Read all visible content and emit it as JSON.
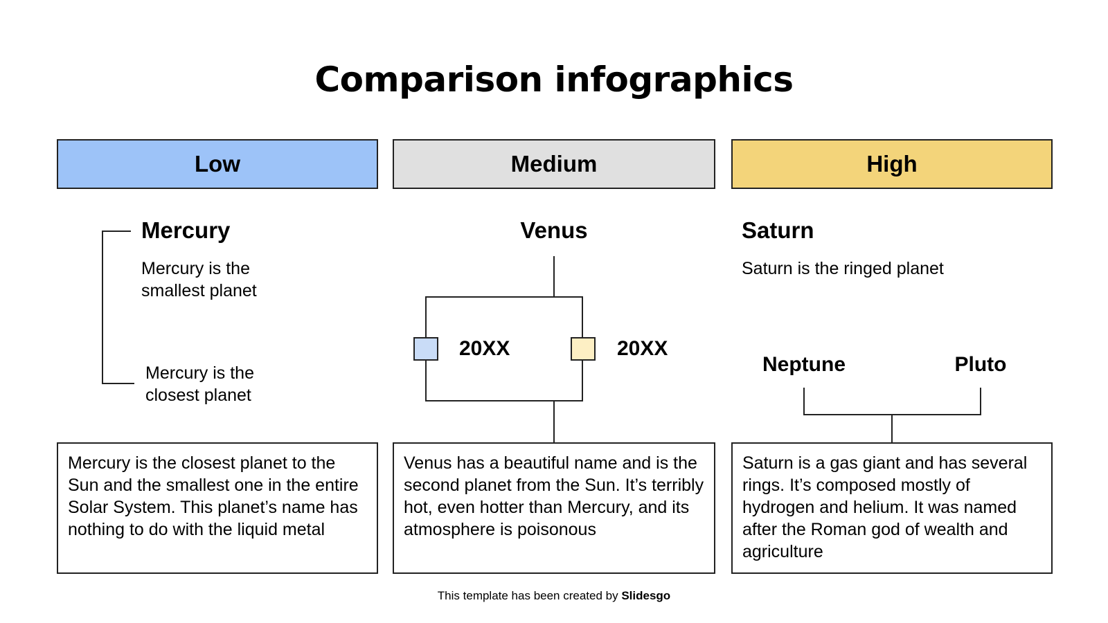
{
  "title": "Comparison infographics",
  "headers": [
    {
      "label": "Low",
      "color": "#9dc3f8"
    },
    {
      "label": "Medium",
      "color": "#e0e0e0"
    },
    {
      "label": "High",
      "color": "#f3d47a"
    }
  ],
  "low": {
    "planet": "Mercury",
    "fact1": "Mercury is the smallest planet",
    "fact2": "Mercury is the closest planet",
    "description": "Mercury is the closest planet to the Sun and the smallest one in the entire Solar System. This planet’s name has nothing to do with the liquid metal"
  },
  "medium": {
    "planet": "Venus",
    "year_left": "20XX",
    "year_right": "20XX",
    "square_left_color": "#c9dcf7",
    "square_right_color": "#fdefc4",
    "description": "Venus has a beautiful name and is the second planet from the Sun. It’s terribly hot, even hotter than Mercury, and its atmosphere is poisonous"
  },
  "high": {
    "planet": "Saturn",
    "fact": "Saturn is the ringed planet",
    "branch_left": "Neptune",
    "branch_right": "Pluto",
    "description": "Saturn is a gas giant and has several rings. It’s composed mostly of hydrogen and helium. It was named after the Roman god of wealth and agriculture"
  },
  "footer": {
    "prefix": "This template has been created by ",
    "brand": "Slidesgo"
  }
}
